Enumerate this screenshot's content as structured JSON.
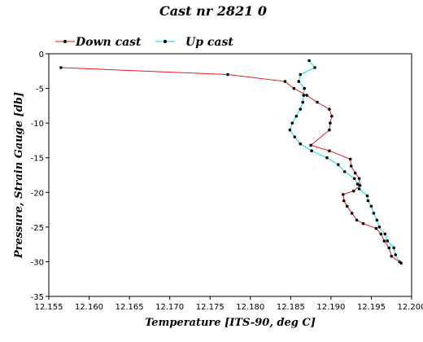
{
  "chart_data": {
    "type": "line",
    "title": "Cast nr 2821 0",
    "xlabel": "Temperature [ITS-90, deg C]",
    "ylabel": "Pressure, Strain Gauge [db]",
    "xlim": [
      12.155,
      12.2
    ],
    "ylim": [
      -35,
      0
    ],
    "xticks": [
      "12.155",
      "12.160",
      "12.165",
      "12.170",
      "12.175",
      "12.180",
      "12.185",
      "12.190",
      "12.195",
      "12.200"
    ],
    "yticks": [
      "0",
      "-5",
      "-10",
      "-15",
      "-20",
      "-25",
      "-30",
      "-35"
    ],
    "legend_position": "top-left",
    "grid": false,
    "series": [
      {
        "name": "Down cast",
        "color": "#e41a1c",
        "marker_color": "#000000",
        "points": [
          [
            12.1565,
            -2.0
          ],
          [
            12.1772,
            -3.0
          ],
          [
            12.1843,
            -4.0
          ],
          [
            12.1854,
            -5.0
          ],
          [
            12.187,
            -6.0
          ],
          [
            12.1883,
            -7.0
          ],
          [
            12.1898,
            -8.0
          ],
          [
            12.1901,
            -9.0
          ],
          [
            12.1899,
            -10.0
          ],
          [
            12.1898,
            -11.0
          ],
          [
            12.1875,
            -13.2
          ],
          [
            12.1898,
            -14.0
          ],
          [
            12.1924,
            -15.2
          ],
          [
            12.1925,
            -16.2
          ],
          [
            12.193,
            -17.2
          ],
          [
            12.1935,
            -18.0
          ],
          [
            12.1936,
            -19.0
          ],
          [
            12.1928,
            -19.8
          ],
          [
            12.1915,
            -20.3
          ],
          [
            12.1916,
            -21.2
          ],
          [
            12.192,
            -22.0
          ],
          [
            12.1926,
            -23.0
          ],
          [
            12.1932,
            -24.0
          ],
          [
            12.194,
            -24.5
          ],
          [
            12.1956,
            -25.2
          ],
          [
            12.1962,
            -26.0
          ],
          [
            12.1966,
            -27.0
          ],
          [
            12.1972,
            -28.0
          ],
          [
            12.1975,
            -29.2
          ],
          [
            12.1987,
            -30.2
          ]
        ]
      },
      {
        "name": "Up cast",
        "color": "#00dede",
        "marker_color": "#000000",
        "points": [
          [
            12.1873,
            -1.0
          ],
          [
            12.188,
            -2.0
          ],
          [
            12.1862,
            -3.0
          ],
          [
            12.186,
            -4.0
          ],
          [
            12.1867,
            -5.0
          ],
          [
            12.1866,
            -6.0
          ],
          [
            12.1865,
            -7.0
          ],
          [
            12.1862,
            -8.0
          ],
          [
            12.1857,
            -9.0
          ],
          [
            12.1852,
            -10.0
          ],
          [
            12.1849,
            -11.0
          ],
          [
            12.1855,
            -12.0
          ],
          [
            12.1862,
            -13.0
          ],
          [
            12.1876,
            -14.0
          ],
          [
            12.1895,
            -15.0
          ],
          [
            12.1909,
            -16.0
          ],
          [
            12.1917,
            -17.0
          ],
          [
            12.1929,
            -18.0
          ],
          [
            12.1933,
            -18.8
          ],
          [
            12.1935,
            -19.5
          ],
          [
            12.1945,
            -20.5
          ],
          [
            12.1946,
            -21.2
          ],
          [
            12.195,
            -22.0
          ],
          [
            12.1953,
            -23.0
          ],
          [
            12.1957,
            -24.0
          ],
          [
            12.196,
            -25.0
          ],
          [
            12.1967,
            -26.0
          ],
          [
            12.197,
            -27.0
          ],
          [
            12.1978,
            -28.0
          ],
          [
            12.198,
            -29.0
          ],
          [
            12.1985,
            -30.0
          ]
        ]
      }
    ]
  }
}
